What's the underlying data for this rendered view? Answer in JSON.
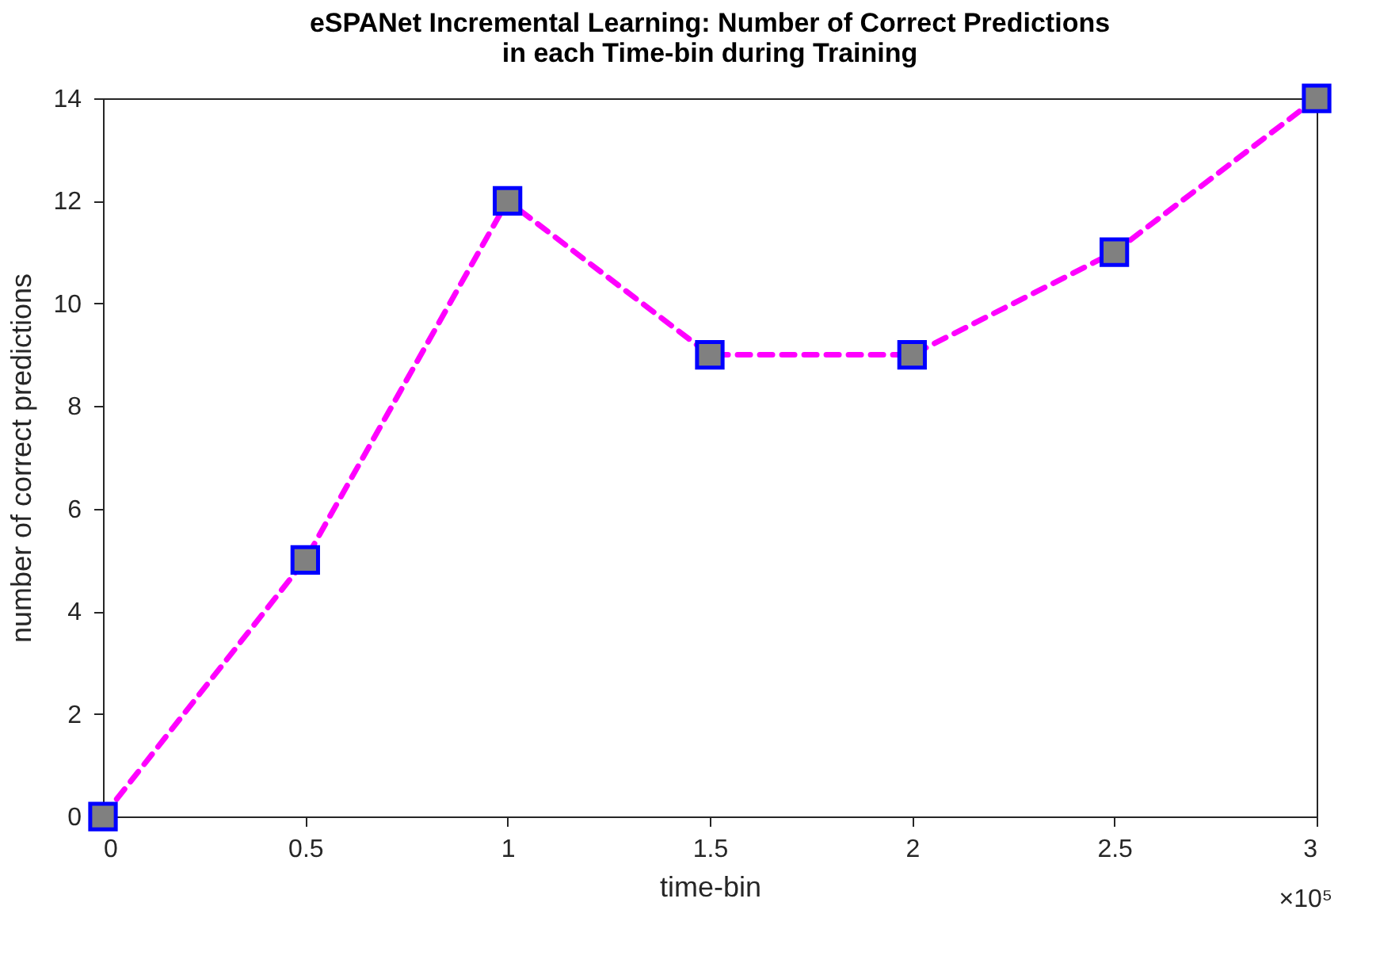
{
  "chart_data": {
    "type": "line",
    "title": "eSPANet Incremental Learning: Number of Correct Predictions\nin each Time-bin during Training",
    "xlabel": "time-bin",
    "ylabel": "number of correct predictions",
    "x": [
      0,
      0.5,
      1,
      1.5,
      2,
      2.5,
      3
    ],
    "series": [
      {
        "color": "#ff00ff",
        "values": [
          0,
          5,
          12,
          9,
          9,
          11,
          14
        ]
      }
    ],
    "xlim": [
      0,
      3
    ],
    "xticks": [
      0,
      0.5,
      1,
      1.5,
      2,
      2.5,
      3
    ],
    "ylim": [
      0,
      14
    ],
    "yticks": [
      0,
      2,
      4,
      6,
      8,
      10,
      12,
      14
    ],
    "annotations": [
      "×10⁵"
    ],
    "marker": "square",
    "line_style": "dashed",
    "grid": false
  }
}
